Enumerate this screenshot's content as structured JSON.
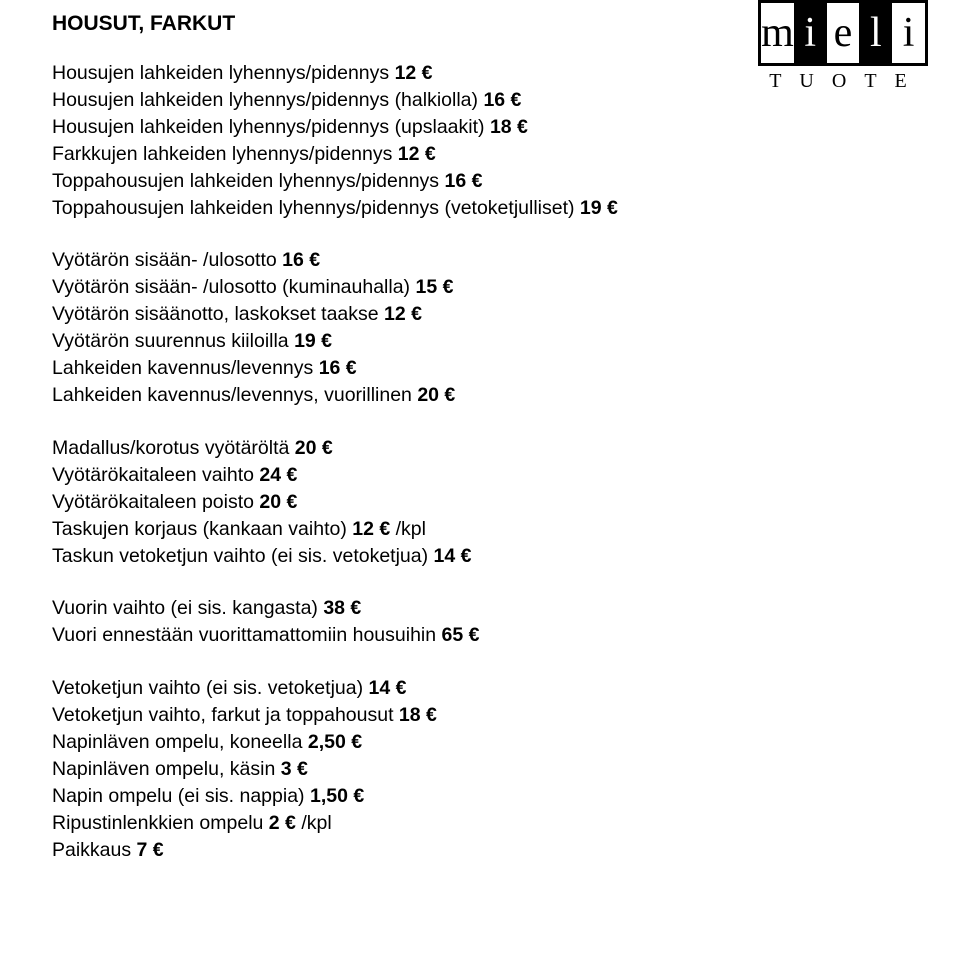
{
  "logo": {
    "letters": [
      "m",
      "i",
      "e",
      "l",
      "i"
    ],
    "inverted": [
      false,
      true,
      false,
      true,
      false
    ],
    "subtext": "TUOTE"
  },
  "title": "HOUSUT, FARKUT",
  "groups": [
    {
      "lines": [
        {
          "text": "Housujen lahkeiden lyhennys/pidennys ",
          "price": "12 €"
        },
        {
          "text": "Housujen lahkeiden lyhennys/pidennys (halkiolla) ",
          "price": "16 €"
        },
        {
          "text": "Housujen lahkeiden lyhennys/pidennys (upslaakit) ",
          "price": "18 €"
        },
        {
          "text": "Farkkujen lahkeiden lyhennys/pidennys ",
          "price": "12 €"
        },
        {
          "text": "Toppahousujen lahkeiden lyhennys/pidennys ",
          "price": "16 €"
        },
        {
          "text": "Toppahousujen lahkeiden lyhennys/pidennys (vetoketjulliset) ",
          "price": "19 €"
        }
      ]
    },
    {
      "lines": [
        {
          "text": "Vyötärön sisään- /ulosotto ",
          "price": "16 €"
        },
        {
          "text": "Vyötärön sisään- /ulosotto (kuminauhalla) ",
          "price": "15 €"
        },
        {
          "text": "Vyötärön sisäänotto, laskokset taakse ",
          "price": "12 €"
        },
        {
          "text": "Vyötärön suurennus kiiloilla ",
          "price": "19 €"
        },
        {
          "text": "Lahkeiden kavennus/levennys ",
          "price": "16 €"
        },
        {
          "text": "Lahkeiden kavennus/levennys, vuorillinen ",
          "price": "20 €"
        }
      ]
    },
    {
      "lines": [
        {
          "text": "Madallus/korotus vyötäröltä ",
          "price": "20 €"
        },
        {
          "text": "Vyötärökaitaleen vaihto ",
          "price": "24 €"
        },
        {
          "text": "Vyötärökaitaleen poisto ",
          "price": "20 €"
        },
        {
          "text": "Taskujen korjaus (kankaan vaihto) ",
          "price": "12 €",
          "suffix": " /kpl"
        },
        {
          "text": "Taskun vetoketjun vaihto (ei sis. vetoketjua) ",
          "price": "14 €"
        }
      ]
    },
    {
      "lines": [
        {
          "text": "Vuorin vaihto (ei sis. kangasta) ",
          "price": "38 €"
        },
        {
          "text": "Vuori ennestään vuorittamattomiin housuihin ",
          "price": "65 €"
        }
      ]
    },
    {
      "lines": [
        {
          "text": "Vetoketjun vaihto (ei sis. vetoketjua) ",
          "price": "14 €"
        },
        {
          "text": "Vetoketjun vaihto, farkut ja toppahousut ",
          "price": "18 €"
        },
        {
          "text": "Napinläven ompelu, koneella ",
          "price": "2,50 €"
        },
        {
          "text": "Napinläven ompelu, käsin ",
          "price": "3 €"
        },
        {
          "text": "Napin ompelu (ei sis. nappia) ",
          "price": "1,50 €"
        },
        {
          "text": "Ripustinlenkkien ompelu ",
          "price": "2 €",
          "suffix": " /kpl"
        },
        {
          "text": "Paikkaus ",
          "price": "7 €"
        }
      ]
    }
  ],
  "colors": {
    "text": "#000000",
    "background": "#ffffff"
  },
  "typography": {
    "body_fontsize_pt": 15,
    "title_fontsize_pt": 16,
    "font_family": "Tahoma, Verdana, sans-serif"
  }
}
